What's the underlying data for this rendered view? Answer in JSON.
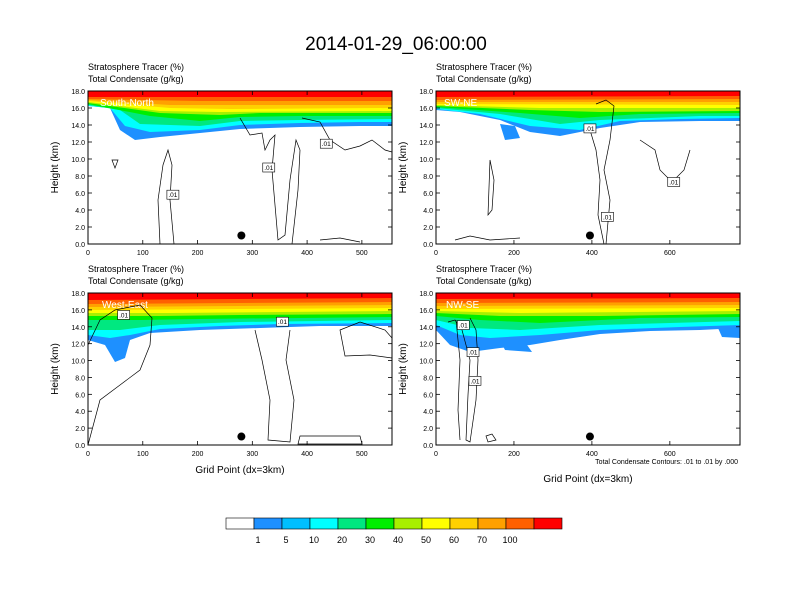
{
  "title": "2014-01-29_06:00:00",
  "panel_labels": {
    "line1": "Stratosphere Tracer   (%)",
    "line2": "Total Condensate   (g/kg)"
  },
  "contour_note": "Total Condensate Contours: .01 to .01 by .000",
  "colorbar": {
    "colors": [
      "#ffffff",
      "#1e90ff",
      "#00bfff",
      "#00ffff",
      "#00e880",
      "#00ee00",
      "#a8f000",
      "#ffff00",
      "#ffd000",
      "#ffa000",
      "#ff6000",
      "#ff0000"
    ],
    "labels": [
      "1",
      "5",
      "10",
      "20",
      "30",
      "40",
      "50",
      "60",
      "70",
      "100"
    ]
  },
  "chart_data": [
    {
      "type": "heatmap",
      "panel": "South-North",
      "title": "South-North",
      "xlabel": "",
      "ylabel": "Height (km)",
      "xlim": [
        0,
        555
      ],
      "ylim": [
        0,
        18
      ],
      "xticks": [
        "0",
        "100",
        "200",
        "300",
        "400",
        "500"
      ],
      "yticks": [
        "0.0",
        "2.0",
        "4.0",
        "6.0",
        "8.0",
        "10.0",
        "12.0",
        "14.0",
        "16.0",
        "18.0"
      ],
      "contour_labels": [
        {
          "x": 155,
          "y": 5.8,
          "text": ".01"
        },
        {
          "x": 330,
          "y": 9.0,
          "text": ".01"
        },
        {
          "x": 435,
          "y": 11.8,
          "text": ".01"
        }
      ],
      "marker": {
        "x": 280,
        "y": 1.0
      }
    },
    {
      "type": "heatmap",
      "panel": "SW-NE",
      "title": "SW-NE",
      "xlabel": "",
      "ylabel": "Height (km)",
      "xlim": [
        0,
        780
      ],
      "ylim": [
        0,
        18
      ],
      "xticks": [
        "0",
        "200",
        "400",
        "600"
      ],
      "yticks": [
        "0.0",
        "2.0",
        "4.0",
        "6.0",
        "8.0",
        "10.0",
        "12.0",
        "14.0",
        "16.0",
        "18.0"
      ],
      "contour_labels": [
        {
          "x": 395,
          "y": 13.6,
          "text": ".01"
        },
        {
          "x": 610,
          "y": 7.3,
          "text": ".01"
        },
        {
          "x": 440,
          "y": 3.2,
          "text": ".01"
        }
      ],
      "marker": {
        "x": 395,
        "y": 1.0
      }
    },
    {
      "type": "heatmap",
      "panel": "West-East",
      "title": "West-East",
      "xlabel": "Grid Point (dx=3km)",
      "ylabel": "Height (km)",
      "xlim": [
        0,
        555
      ],
      "ylim": [
        0,
        18
      ],
      "xticks": [
        "0",
        "100",
        "200",
        "300",
        "400",
        "500"
      ],
      "yticks": [
        "0.0",
        "2.0",
        "4.0",
        "6.0",
        "8.0",
        "10.0",
        "12.0",
        "14.0",
        "16.0",
        "18.0"
      ],
      "contour_labels": [
        {
          "x": 65,
          "y": 15.4,
          "text": ".01"
        },
        {
          "x": 355,
          "y": 14.6,
          "text": ".01"
        }
      ],
      "marker": {
        "x": 280,
        "y": 1.0
      }
    },
    {
      "type": "heatmap",
      "panel": "NW-SE",
      "title": "NW-SE",
      "xlabel": "Grid Point (dx=3km)",
      "ylabel": "Height (km)",
      "xlim": [
        0,
        780
      ],
      "ylim": [
        0,
        18
      ],
      "xticks": [
        "0",
        "200",
        "400",
        "600"
      ],
      "yticks": [
        "0.0",
        "2.0",
        "4.0",
        "6.0",
        "8.0",
        "10.0",
        "12.0",
        "14.0",
        "16.0",
        "18.0"
      ],
      "contour_labels": [
        {
          "x": 70,
          "y": 14.2,
          "text": ".01"
        },
        {
          "x": 95,
          "y": 11.0,
          "text": ".01"
        },
        {
          "x": 100,
          "y": 7.6,
          "text": ".01"
        }
      ],
      "marker": {
        "x": 395,
        "y": 1.0
      }
    }
  ]
}
